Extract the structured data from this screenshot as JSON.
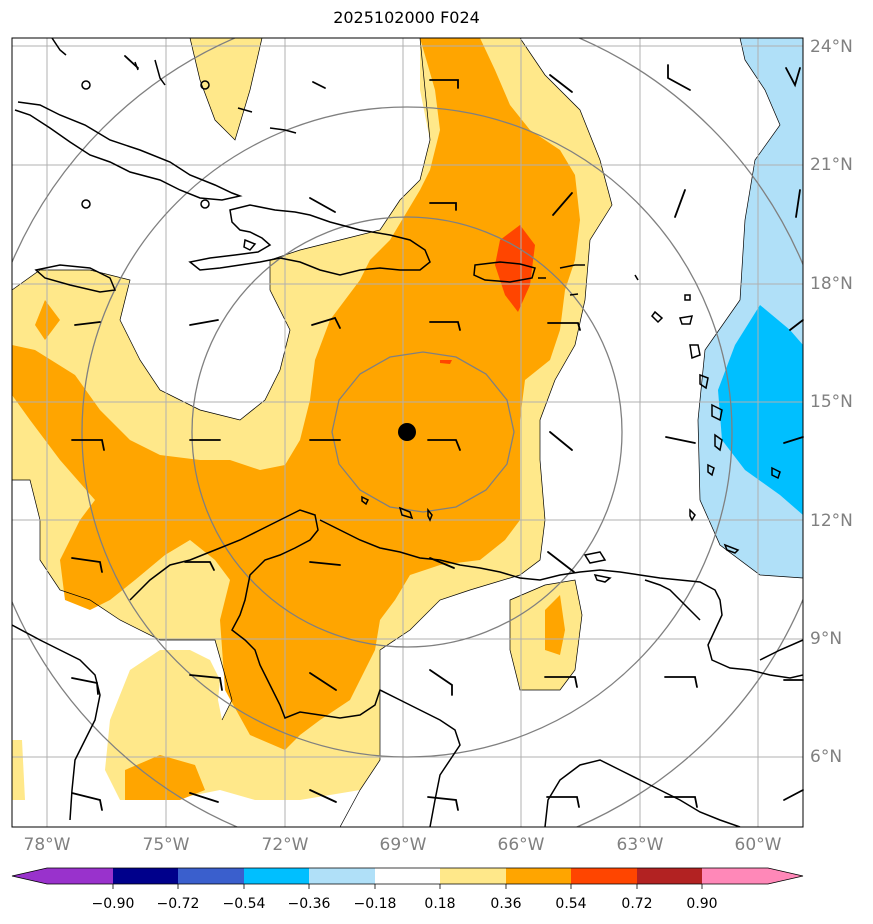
{
  "title": "2025102000 F024",
  "lat_labels": [
    "24°N",
    "21°N",
    "18°N",
    "15°N",
    "12°N",
    "9°N",
    "6°N"
  ],
  "lon_labels": [
    "78°W",
    "75°W",
    "72°W",
    "69°W",
    "66°W",
    "63°W",
    "60°W"
  ],
  "colorbar": {
    "ticks": [
      "−0.90",
      "−0.72",
      "−0.54",
      "−0.36",
      "−0.18",
      "0.18",
      "0.36",
      "0.54",
      "0.72",
      "0.90"
    ],
    "colors": [
      "#9932cc",
      "#00008b",
      "#3a5fcd",
      "#00bfff",
      "#b0e0f8",
      "#ffffff",
      "#ffe88a",
      "#ffa500",
      "#ff4500",
      "#b22222",
      "#ff88b8"
    ]
  },
  "center_marker": {
    "lat": 14.2,
    "lon": -68.9
  }
}
